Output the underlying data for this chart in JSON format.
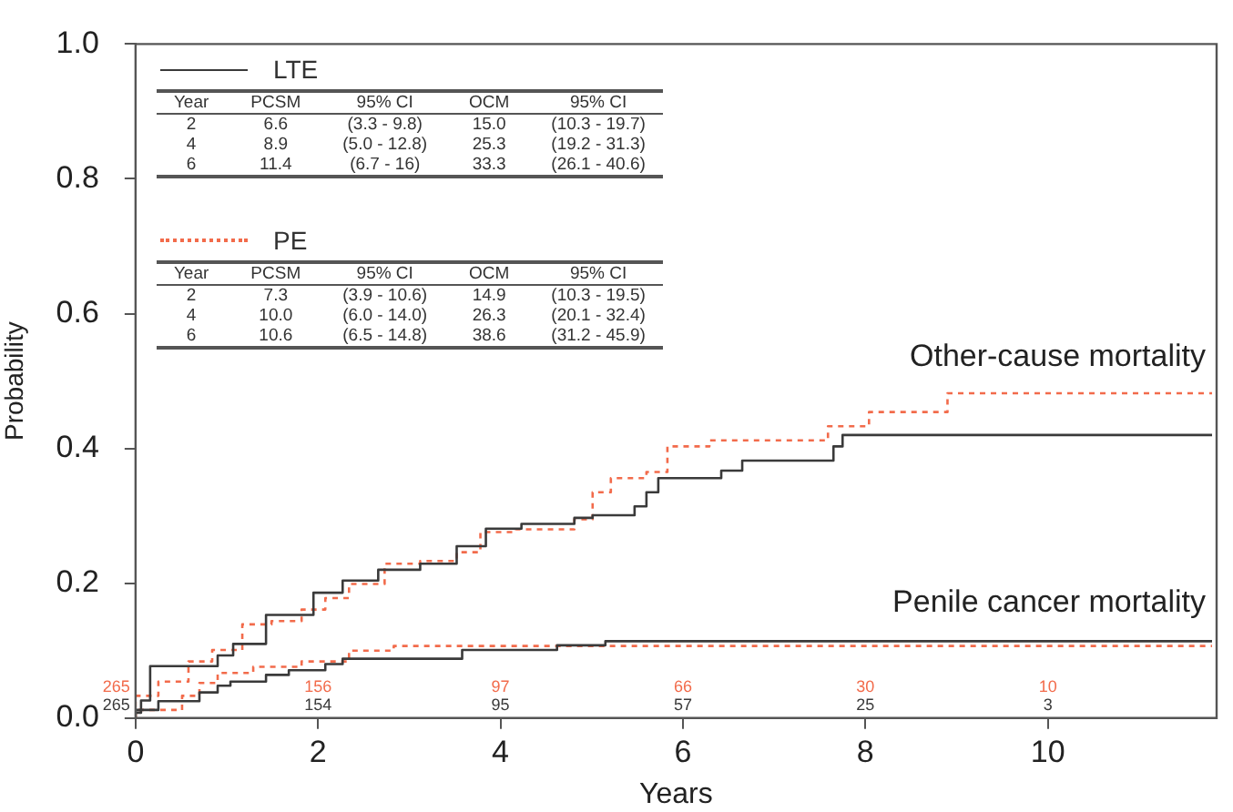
{
  "chart_data": {
    "type": "step",
    "xlabel": "Years",
    "ylabel": "Probability",
    "xlim": [
      0,
      11.85
    ],
    "xticks": [
      0,
      2,
      4,
      6,
      8,
      10
    ],
    "ylim": [
      0,
      1
    ],
    "yticks": [
      {
        "value": 0,
        "label": "0.0"
      },
      {
        "value": 0.2,
        "label": "0.2"
      },
      {
        "value": 0.4,
        "label": "0.4"
      },
      {
        "value": 0.6,
        "label": "0.6"
      },
      {
        "value": 0.8,
        "label": "0.8"
      },
      {
        "value": 1,
        "label": "1.0"
      }
    ],
    "grid": false,
    "legend": "top left",
    "series": [
      {
        "name": "LTE",
        "color": "#3a3a3a",
        "line_style": "solid",
        "x": [
          0,
          0.06,
          0.16,
          0.9,
          1.07,
          1.43,
          1.95,
          2.27,
          2.66,
          3.12,
          3.52,
          3.84,
          4.23,
          4.81,
          5.01,
          5.47,
          5.6,
          5.73,
          6.42,
          6.65,
          7.65,
          7.75,
          7.98,
          11.8
        ],
        "values": [
          0,
          0.008,
          0.026,
          0.077,
          0.093,
          0.11,
          0.153,
          0.186,
          0.204,
          0.22,
          0.229,
          0.255,
          0.281,
          0.288,
          0.297,
          0.301,
          0.314,
          0.335,
          0.356,
          0.367,
          0.382,
          0.403,
          0.42,
          0.42
        ]
      },
      {
        "name": "PE",
        "color": "#f26b4b",
        "line_style": "dotted",
        "x": [
          0,
          0.25,
          0.58,
          0.84,
          1.17,
          1.49,
          1.82,
          2.08,
          2.34,
          2.73,
          3.12,
          3.52,
          3.78,
          4.17,
          4.81,
          5.01,
          5.21,
          5.6,
          5.83,
          6.29,
          7.59,
          8.04,
          8.9,
          9.09,
          11.8
        ],
        "values": [
          0,
          0.033,
          0.054,
          0.084,
          0.101,
          0.139,
          0.144,
          0.161,
          0.178,
          0.199,
          0.229,
          0.233,
          0.246,
          0.276,
          0.28,
          0.295,
          0.335,
          0.356,
          0.365,
          0.403,
          0.412,
          0.433,
          0.454,
          0.482,
          0.482
        ]
      },
      {
        "color": "#3a3a3a",
        "line_style": "solid",
        "x": [
          0,
          0.25,
          0.7,
          0.9,
          1.04,
          1.43,
          1.68,
          2.08,
          2.27,
          3.58,
          4.62,
          5.15,
          5.57,
          11.8
        ],
        "values": [
          0,
          0.012,
          0.025,
          0.038,
          0.048,
          0.054,
          0.064,
          0.071,
          0.08,
          0.088,
          0.101,
          0.108,
          0.114,
          0.114
        ]
      },
      {
        "color": "#f26b4b",
        "line_style": "dotted",
        "x": [
          0,
          0.51,
          0.7,
          0.9,
          1.29,
          1.82,
          2.34,
          2.83,
          4.13,
          11.8
        ],
        "values": [
          0,
          0.012,
          0.033,
          0.052,
          0.067,
          0.076,
          0.084,
          0.1,
          0.107,
          0.107
        ]
      }
    ],
    "annotations": [
      "Year",
      "PCSM",
      "95% CI",
      "OCM",
      "95% CI",
      "2",
      "6.6",
      "(3.3 - 9.8)",
      "15.0",
      "(10.3 - 19.7)",
      "4",
      "8.9",
      "(5.0 - 12.8)",
      "25.3",
      "(19.2 - 31.3)",
      "6",
      "11.4",
      "(6.7 - 16)",
      "33.3",
      "(26.1 - 40.6)",
      "Year",
      "PCSM",
      "95% CI",
      "OCM",
      "95% CI",
      "2",
      "7.3",
      "(3.9 - 10.6)",
      "14.9",
      "(10.3 - 19.5)",
      "4",
      "10.0",
      "(6.0 - 14.0)",
      "26.3",
      "(20.1 - 32.4)",
      "6",
      "10.6",
      "(6.5 - 14.8)",
      "38.6",
      "(31.2 - 45.9)",
      "Other-cause mortality",
      "Penile cancer mortality",
      "265",
      "156",
      "97",
      "66",
      "30",
      "10",
      "265",
      "154",
      "95",
      "57",
      "25",
      "3"
    ]
  }
}
